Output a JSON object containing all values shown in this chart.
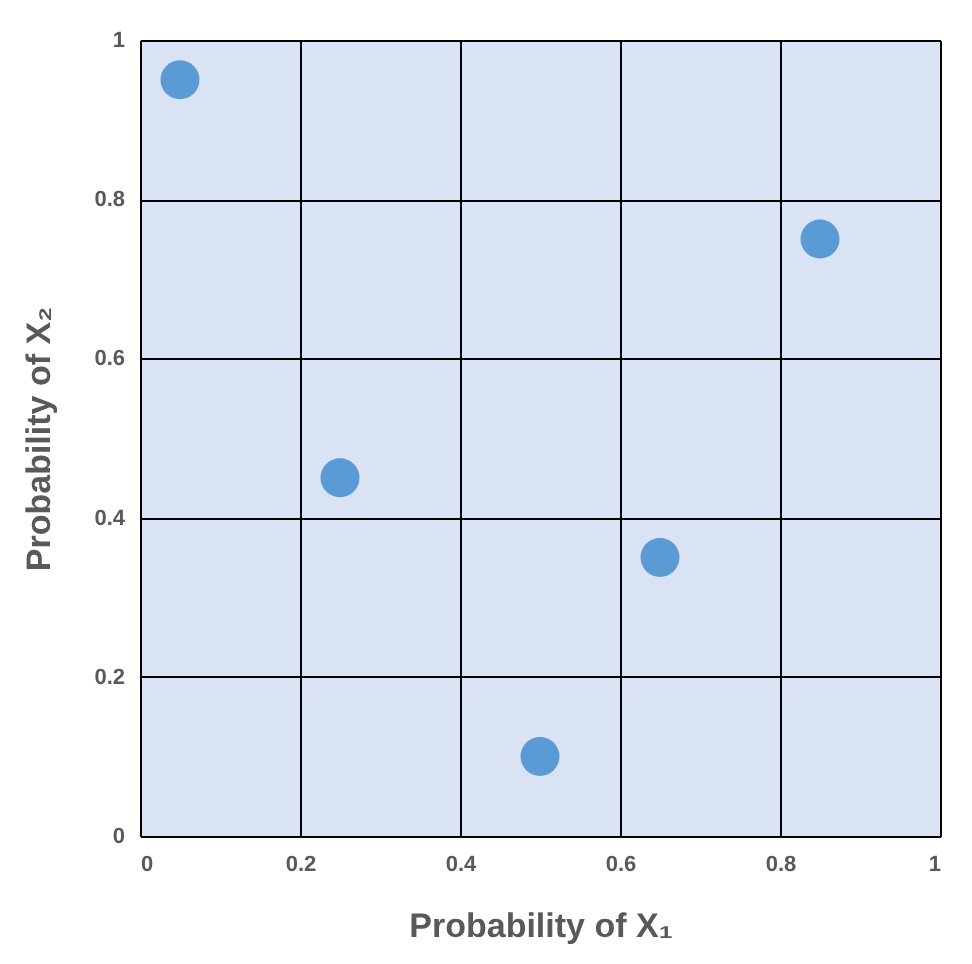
{
  "chart_data": {
    "type": "scatter",
    "xlabel": "Probability of X₁",
    "ylabel": "Probability of X₂",
    "x": [
      0.05,
      0.25,
      0.5,
      0.65,
      0.85
    ],
    "series": [
      {
        "color": "#5b9bd5",
        "values": [
          0.95,
          0.45,
          0.1,
          0.35,
          0.75
        ]
      }
    ],
    "xlim": [
      0,
      1
    ],
    "ylim": [
      0,
      1
    ],
    "xticks": [
      0,
      0.2,
      0.4,
      0.6,
      0.8,
      1
    ],
    "yticks": [
      0,
      0.2,
      0.4,
      0.6,
      0.8,
      1
    ],
    "grid": true,
    "marker": "circle"
  }
}
